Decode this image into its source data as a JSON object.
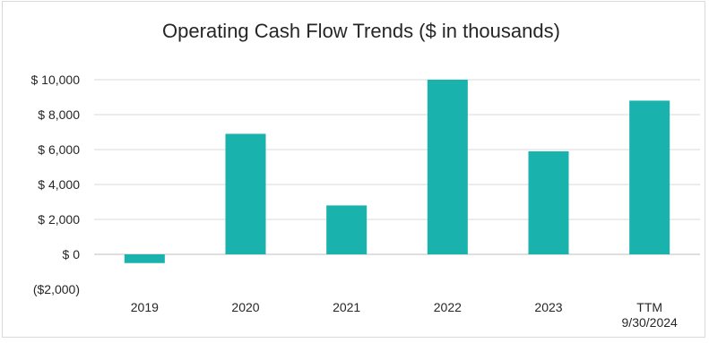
{
  "chart_data": {
    "type": "bar",
    "title": "Operating Cash Flow Trends ($ in thousands)",
    "xlabel": "",
    "ylabel": "",
    "categories": [
      [
        "2019"
      ],
      [
        "2020"
      ],
      [
        "2021"
      ],
      [
        "2022"
      ],
      [
        "2023"
      ],
      [
        "TTM",
        "9/30/2024"
      ]
    ],
    "values": [
      -500,
      6900,
      2800,
      10000,
      5900,
      8800
    ],
    "ylim": [
      -2000,
      10000
    ],
    "yticks": [
      {
        "value": 10000,
        "label": "$ 10,000"
      },
      {
        "value": 8000,
        "label": "$ 8,000"
      },
      {
        "value": 6000,
        "label": "$ 6,000"
      },
      {
        "value": 4000,
        "label": "$ 4,000"
      },
      {
        "value": 2000,
        "label": "$ 2,000"
      },
      {
        "value": 0,
        "label": "$ 0"
      },
      {
        "value": -2000,
        "label": "($2,000)"
      }
    ],
    "grid": true,
    "legend": "none",
    "bar_color": "#19b2ad"
  }
}
